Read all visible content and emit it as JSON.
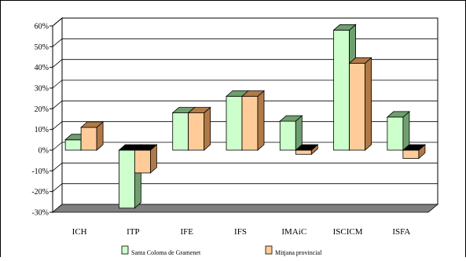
{
  "chart_data": {
    "type": "bar",
    "categories": [
      "ICH",
      "ITP",
      "IFE",
      "IFS",
      "IMAiC",
      "ISCICM",
      "ISFA"
    ],
    "series": [
      {
        "name": "Santa Coloma de Gramenet",
        "values": [
          5,
          -28,
          18,
          26,
          14,
          58,
          16
        ]
      },
      {
        "name": "Mitjana provincial",
        "values": [
          11,
          -11,
          18,
          26,
          -2,
          42,
          -4
        ]
      }
    ],
    "ylim": [
      -30,
      60
    ],
    "yticks": [
      60,
      50,
      40,
      30,
      20,
      10,
      0,
      -10,
      -20,
      -30
    ],
    "ytick_labels": [
      "60%",
      "50%",
      "40%",
      "30%",
      "20%",
      "10%",
      "0%",
      "-10%",
      "-20%",
      "-30%"
    ],
    "grid": true,
    "legend_position": "bottom",
    "colors": {
      "series1_front": "#ccffcc",
      "series1_side": "#6f9f6f",
      "series2_front": "#ffcc99",
      "series2_side": "#b07a47",
      "floor": "#7f7f7f",
      "wall": "#ffffff",
      "grid": "#000000"
    }
  }
}
